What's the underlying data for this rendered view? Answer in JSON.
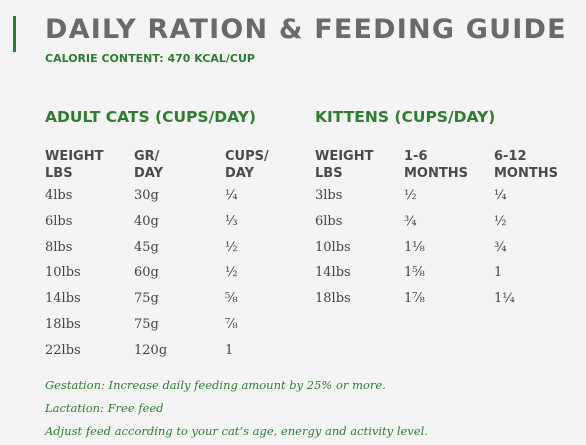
{
  "title": "DAILY RATION & FEEDING GUIDE",
  "calorie_content": "CALORIE CONTENT: 470 KCAL/CUP",
  "adult": {
    "heading": "ADULT CATS (CUPS/DAY)",
    "columns": [
      [
        "WEIGHT",
        "LBS"
      ],
      [
        "GR/",
        "DAY"
      ],
      [
        "CUPS/",
        "DAY"
      ]
    ],
    "rows": [
      [
        "4lbs",
        "30g",
        "¼"
      ],
      [
        "6lbs",
        "40g",
        "⅓"
      ],
      [
        "8lbs",
        "45g",
        "½"
      ],
      [
        "10lbs",
        "60g",
        "½"
      ],
      [
        "14lbs",
        "75g",
        "⅝"
      ],
      [
        "18lbs",
        "75g",
        "⅞"
      ],
      [
        "22lbs",
        "120g",
        "1"
      ]
    ]
  },
  "kittens": {
    "heading": "KITTENS (CUPS/DAY)",
    "columns": [
      [
        "WEIGHT",
        "LBS"
      ],
      [
        "1-6",
        "MONTHS"
      ],
      [
        "6-12",
        "MONTHS"
      ]
    ],
    "rows": [
      [
        "3lbs",
        "½",
        "¼"
      ],
      [
        "6lbs",
        "¾",
        "½"
      ],
      [
        "10lbs",
        "1⅛",
        "¾"
      ],
      [
        "14lbs",
        "1⅝",
        "1"
      ],
      [
        "18lbs",
        "1⅞",
        "1¼"
      ]
    ]
  },
  "notes": [
    "Gestation: Increase daily feeding amount by 25% or more.",
    "Lactation: Free feed",
    "Adjust feed according to your cat’s age, energy and activity level."
  ]
}
